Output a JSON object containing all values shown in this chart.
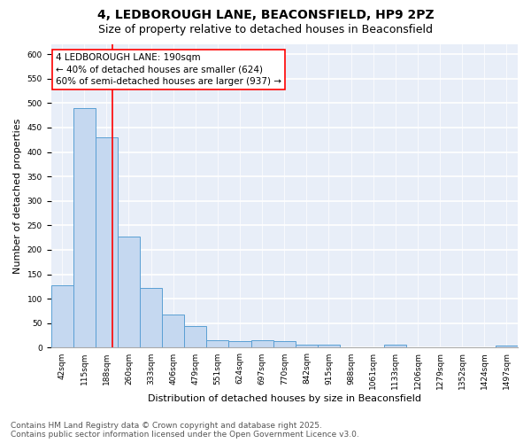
{
  "title_line1": "4, LEDBOROUGH LANE, BEACONSFIELD, HP9 2PZ",
  "title_line2": "Size of property relative to detached houses in Beaconsfield",
  "xlabel": "Distribution of detached houses by size in Beaconsfield",
  "ylabel": "Number of detached properties",
  "bar_color": "#c5d8f0",
  "bar_edge_color": "#5a9fd4",
  "categories": [
    "42sqm",
    "115sqm",
    "188sqm",
    "260sqm",
    "333sqm",
    "406sqm",
    "479sqm",
    "551sqm",
    "624sqm",
    "697sqm",
    "770sqm",
    "842sqm",
    "915sqm",
    "988sqm",
    "1061sqm",
    "1133sqm",
    "1206sqm",
    "1279sqm",
    "1352sqm",
    "1424sqm",
    "1497sqm"
  ],
  "values": [
    128,
    490,
    430,
    228,
    122,
    68,
    45,
    15,
    13,
    15,
    13,
    7,
    7,
    0,
    0,
    6,
    0,
    0,
    0,
    0,
    5
  ],
  "red_line_x": 2.27,
  "annotation_text": "4 LEDBOROUGH LANE: 190sqm\n← 40% of detached houses are smaller (624)\n60% of semi-detached houses are larger (937) →",
  "annotation_box_color": "white",
  "annotation_box_edge_color": "red",
  "ylim": [
    0,
    620
  ],
  "yticks": [
    0,
    50,
    100,
    150,
    200,
    250,
    300,
    350,
    400,
    450,
    500,
    550,
    600
  ],
  "background_color": "#e8eef8",
  "grid_color": "#d0d8e8",
  "footer_line1": "Contains HM Land Registry data © Crown copyright and database right 2025.",
  "footer_line2": "Contains public sector information licensed under the Open Government Licence v3.0.",
  "title_fontsize": 10,
  "subtitle_fontsize": 9,
  "tick_fontsize": 6.5,
  "label_fontsize": 8,
  "annotation_fontsize": 7.5,
  "footer_fontsize": 6.5
}
